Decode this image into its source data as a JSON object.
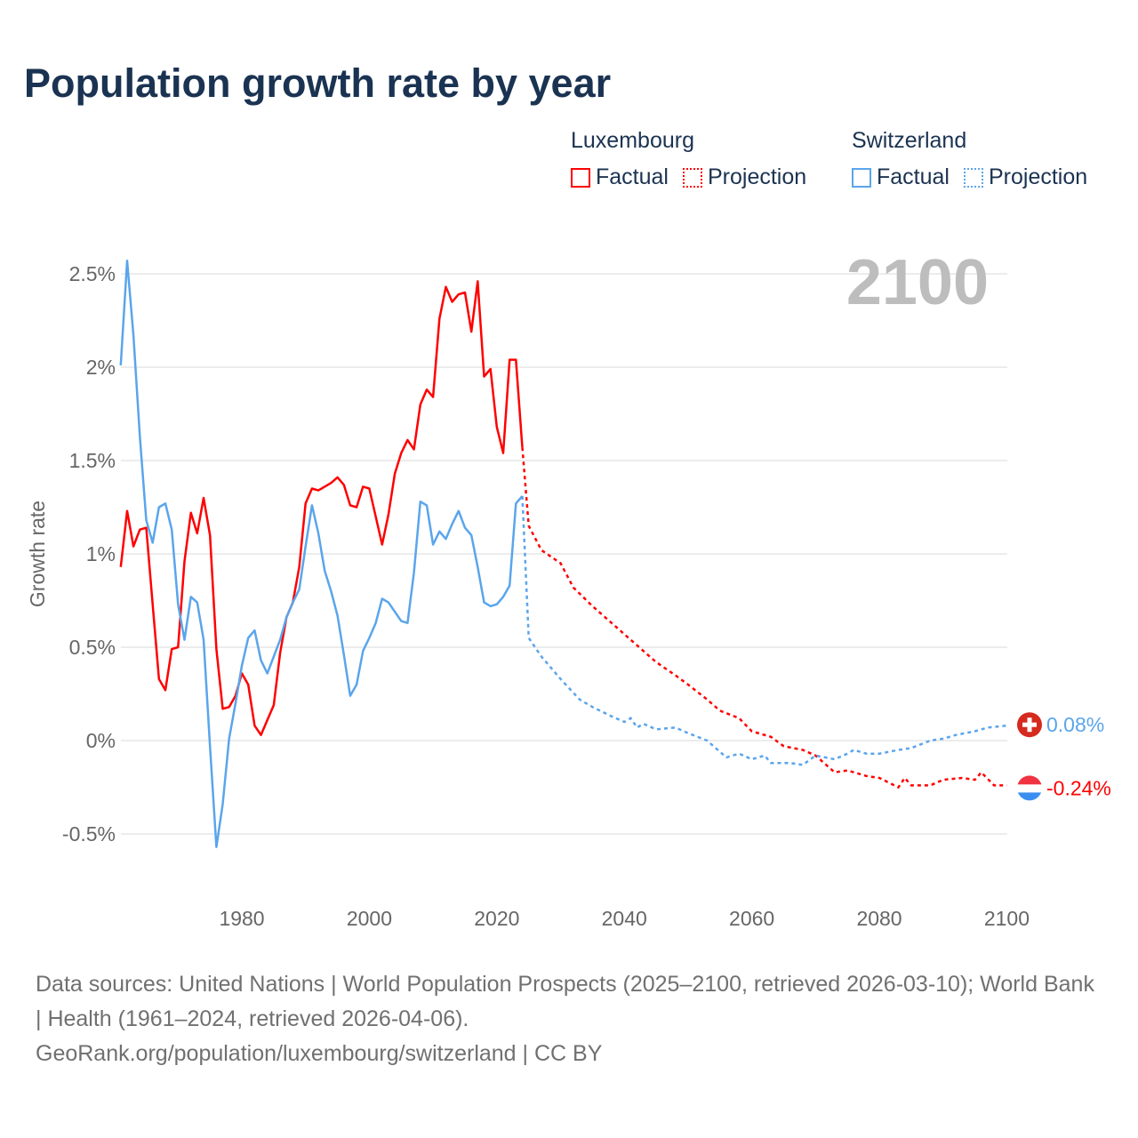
{
  "title": "Population growth rate by year",
  "legend": {
    "groups": [
      {
        "name": "Luxembourg",
        "factual": "Factual",
        "projection": "Projection",
        "color": "#ff0000"
      },
      {
        "name": "Switzerland",
        "factual": "Factual",
        "projection": "Projection",
        "color": "#5aa5ec"
      }
    ]
  },
  "year_display": "2100",
  "footer": {
    "sources": "Data sources: United Nations | World Population Prospects (2025–2100, retrieved 2026-03-10); World Bank | Health (1961–2024, retrieved 2026-04-06).",
    "credit": "GeoRank.org/population/luxembourg/switzerland | CC BY"
  },
  "chart_data": {
    "type": "line",
    "title": "Population growth rate by year",
    "ylabel": "Growth rate",
    "xlabel": "",
    "xlim": [
      1961,
      2100
    ],
    "ylim": [
      -0.6,
      2.6
    ],
    "x_ticks": [
      1980,
      2000,
      2020,
      2040,
      2060,
      2080,
      2100
    ],
    "y_ticks": [
      -0.5,
      0,
      0.5,
      1,
      1.5,
      2,
      2.5
    ],
    "y_tick_labels": [
      "-0.5%",
      "0%",
      "0.5%",
      "1%",
      "1.5%",
      "2%",
      "2.5%"
    ],
    "grid": true,
    "legend_position": "top-right",
    "series": [
      {
        "name": "Luxembourg",
        "color": "#ff0000",
        "end_label": "-0.24%",
        "factual": {
          "x_start": 1961,
          "values": [
            0.93,
            1.23,
            1.04,
            1.13,
            1.14,
            0.73,
            0.33,
            0.27,
            0.49,
            0.5,
            0.96,
            1.22,
            1.11,
            1.3,
            1.1,
            0.49,
            0.17,
            0.18,
            0.24,
            0.36,
            0.3,
            0.08,
            0.03,
            0.11,
            0.19,
            0.47,
            0.66,
            0.74,
            0.93,
            1.27,
            1.35,
            1.34,
            1.36,
            1.38,
            1.41,
            1.37,
            1.26,
            1.25,
            1.36,
            1.35,
            1.2,
            1.05,
            1.21,
            1.43,
            1.54,
            1.61,
            1.56,
            1.8,
            1.88,
            1.84,
            2.26,
            2.43,
            2.35,
            2.39,
            2.4,
            2.19,
            2.46,
            1.95,
            1.99,
            1.68,
            1.54,
            2.04,
            2.04,
            1.57
          ]
        },
        "projection": {
          "x": [
            2024,
            2025,
            2027,
            2030,
            2032,
            2035,
            2038,
            2040,
            2043,
            2045,
            2048,
            2050,
            2053,
            2055,
            2058,
            2060,
            2063,
            2065,
            2068,
            2070,
            2073,
            2075,
            2078,
            2080,
            2083,
            2084,
            2085,
            2088,
            2090,
            2093,
            2095,
            2096,
            2098,
            2100
          ],
          "values": [
            1.57,
            1.15,
            1.02,
            0.95,
            0.82,
            0.72,
            0.63,
            0.57,
            0.48,
            0.42,
            0.35,
            0.3,
            0.22,
            0.16,
            0.12,
            0.05,
            0.02,
            -0.03,
            -0.05,
            -0.08,
            -0.17,
            -0.16,
            -0.19,
            -0.2,
            -0.25,
            -0.2,
            -0.24,
            -0.24,
            -0.21,
            -0.2,
            -0.21,
            -0.17,
            -0.24,
            -0.24
          ]
        }
      },
      {
        "name": "Switzerland",
        "color": "#5aa5ec",
        "end_label": "0.08%",
        "factual": {
          "x_start": 1961,
          "values": [
            2.01,
            2.57,
            2.17,
            1.63,
            1.18,
            1.06,
            1.25,
            1.27,
            1.13,
            0.73,
            0.54,
            0.77,
            0.74,
            0.54,
            -0.03,
            -0.57,
            -0.34,
            0.01,
            0.2,
            0.4,
            0.55,
            0.59,
            0.43,
            0.36,
            0.45,
            0.54,
            0.66,
            0.74,
            0.81,
            1.04,
            1.26,
            1.11,
            0.91,
            0.8,
            0.67,
            0.46,
            0.24,
            0.3,
            0.48,
            0.55,
            0.63,
            0.76,
            0.74,
            0.69,
            0.64,
            0.63,
            0.9,
            1.28,
            1.26,
            1.05,
            1.12,
            1.08,
            1.16,
            1.23,
            1.14,
            1.1,
            0.93,
            0.74,
            0.72,
            0.73,
            0.77,
            0.83,
            1.27,
            1.31
          ]
        },
        "projection": {
          "x": [
            2024,
            2025,
            2027,
            2030,
            2033,
            2035,
            2038,
            2040,
            2041,
            2042,
            2043,
            2045,
            2048,
            2050,
            2053,
            2056,
            2058,
            2060,
            2062,
            2063,
            2066,
            2068,
            2070,
            2073,
            2075,
            2076,
            2078,
            2080,
            2083,
            2085,
            2088,
            2090,
            2092,
            2095,
            2097,
            2100
          ],
          "values": [
            1.31,
            0.55,
            0.45,
            0.33,
            0.22,
            0.18,
            0.13,
            0.1,
            0.12,
            0.07,
            0.09,
            0.06,
            0.07,
            0.04,
            0.0,
            -0.09,
            -0.07,
            -0.1,
            -0.08,
            -0.12,
            -0.12,
            -0.13,
            -0.08,
            -0.1,
            -0.07,
            -0.05,
            -0.07,
            -0.07,
            -0.05,
            -0.04,
            0.0,
            0.01,
            0.03,
            0.05,
            0.07,
            0.08
          ]
        }
      }
    ]
  }
}
